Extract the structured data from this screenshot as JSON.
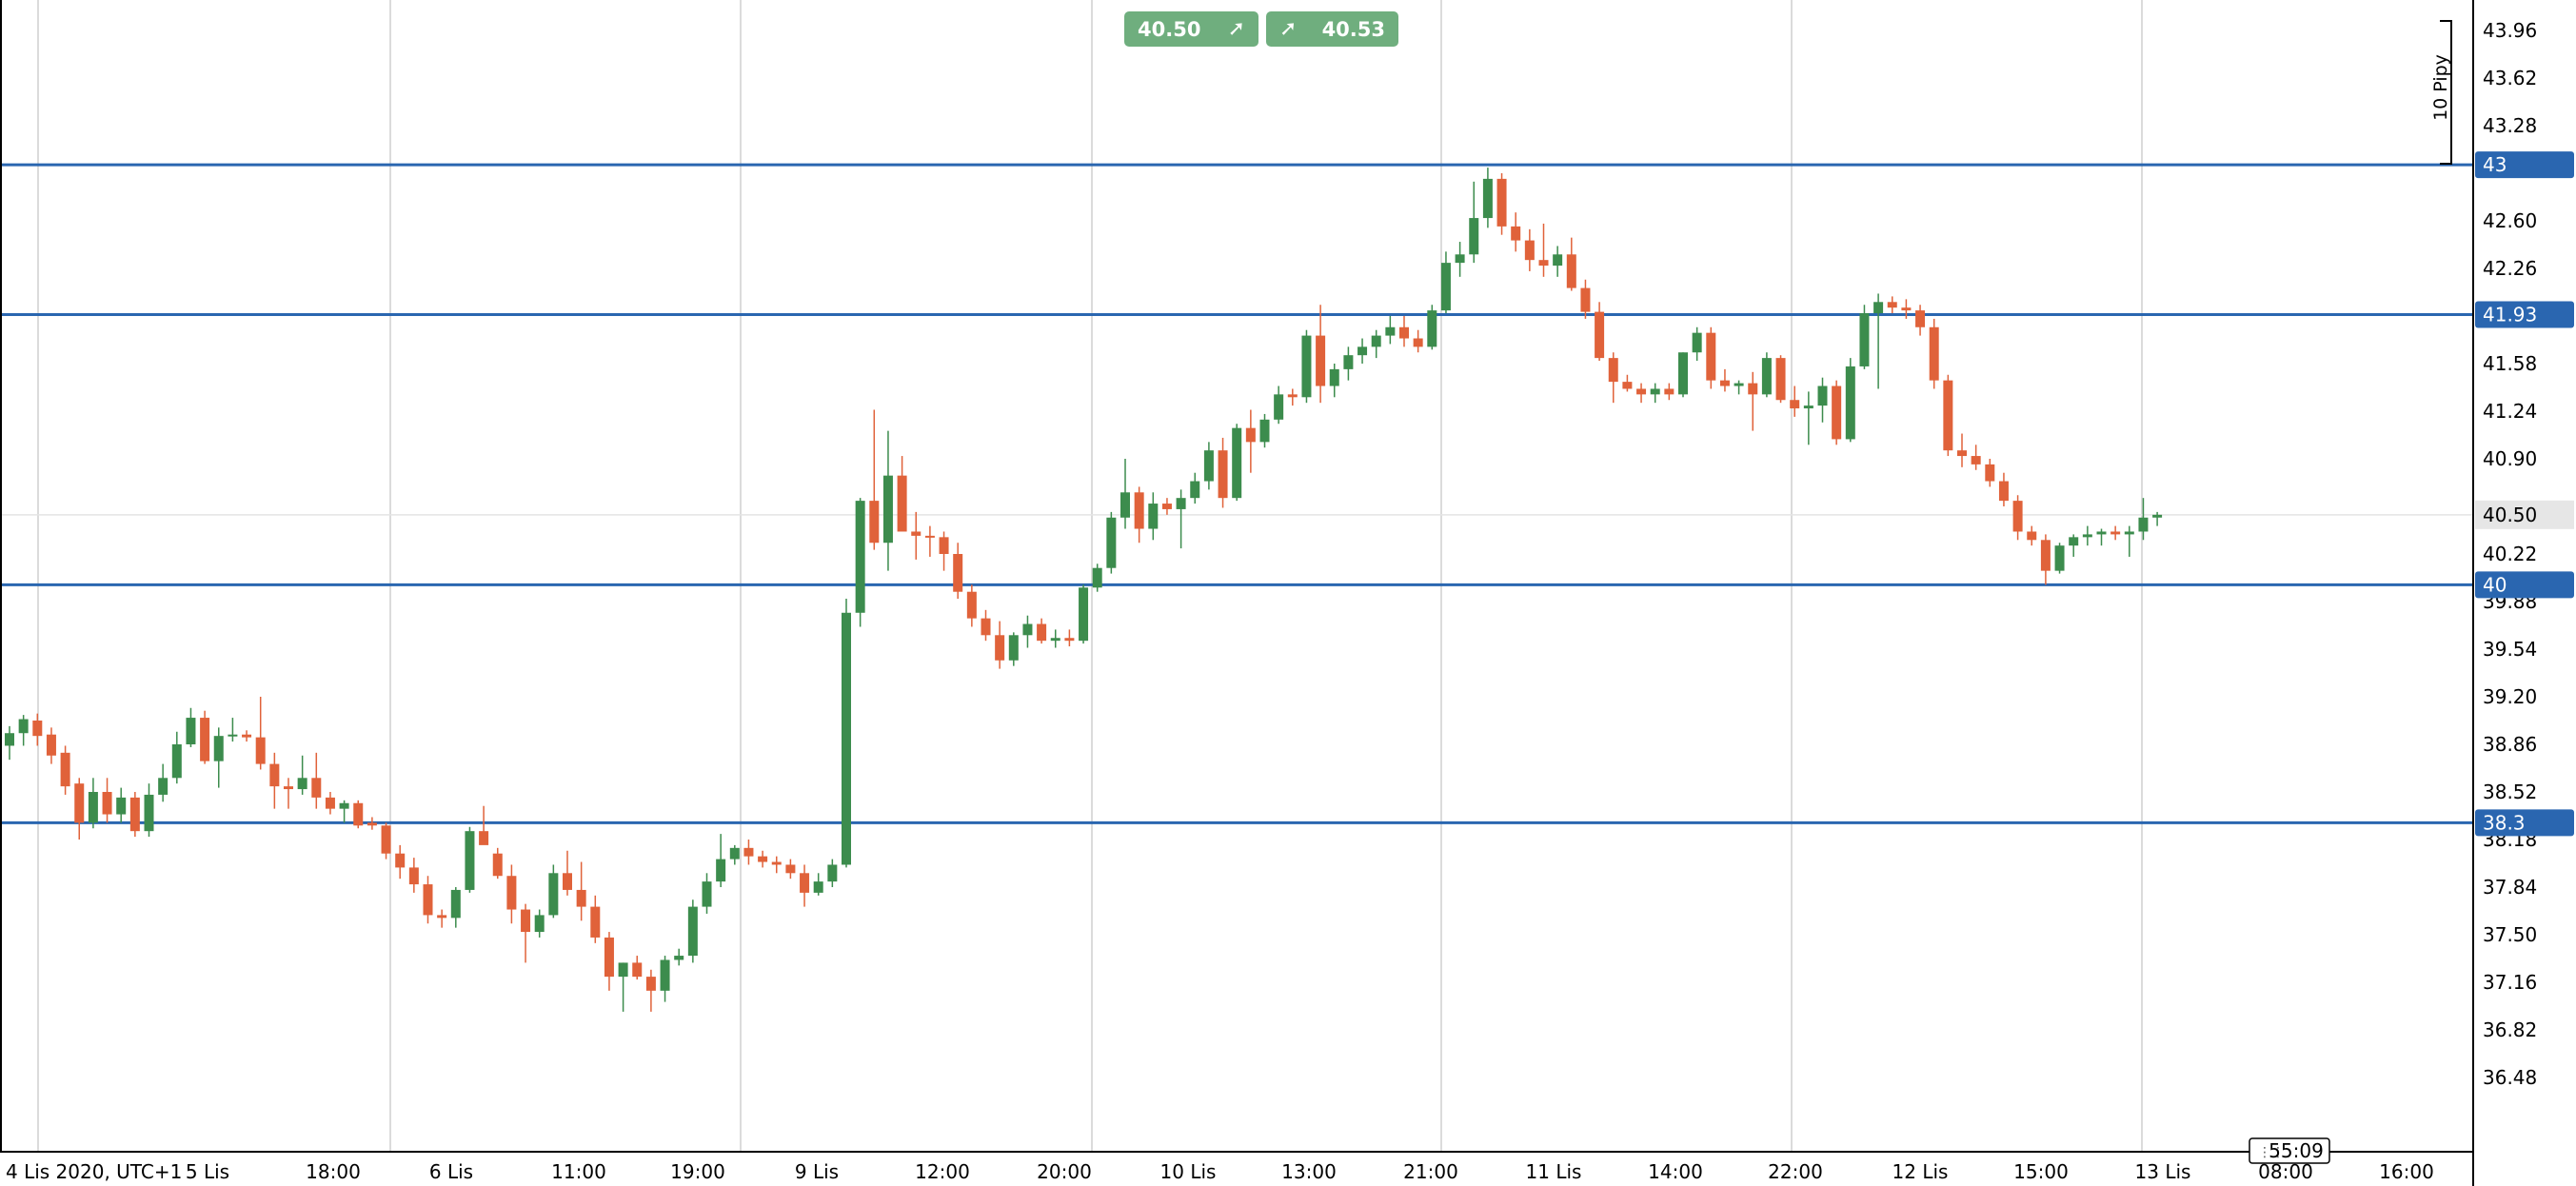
{
  "trade_panel": {
    "sell_price": "40.50",
    "buy_price": "40.53",
    "sell_icon": "arrow-up-right-icon",
    "buy_icon": "arrow-up-right-icon"
  },
  "colors": {
    "bull": "#3c8c4d",
    "bear": "#e0623a",
    "level_line": "#2a66b0",
    "level_label_bg": "#2a66b0",
    "current_price_label_bg": "#e6e6e6",
    "grid": "#cfcfcf"
  },
  "chart_data": {
    "type": "candlestick",
    "timezone_label": "4 Lis 2020, UTC+1",
    "x_tick_labels": [
      "4 Lis 2020, UTC+1",
      "5 Lis",
      "18:00",
      "6 Lis",
      "11:00",
      "19:00",
      "9 Lis",
      "12:00",
      "20:00",
      "10 Lis",
      "13:00",
      "21:00",
      "11 Lis",
      "14:00",
      "22:00",
      "12 Lis",
      "15:00",
      "13 Lis",
      "08:00",
      "16:00"
    ],
    "y_tick_labels": [
      "43.96",
      "43.62",
      "43.28",
      "42.60",
      "42.26",
      "41.58",
      "41.24",
      "40.90",
      "40.50",
      "40.22",
      "39.88",
      "39.54",
      "39.20",
      "38.86",
      "38.52",
      "38.18",
      "37.84",
      "37.50",
      "37.16",
      "36.82",
      "36.48"
    ],
    "ylim": [
      36.1,
      44.1
    ],
    "horizontal_levels": [
      {
        "label": "43",
        "value": 43.0
      },
      {
        "label": "41.93",
        "value": 41.93
      },
      {
        "label": "40",
        "value": 40.0
      },
      {
        "label": "38.3",
        "value": 38.3
      }
    ],
    "current_price": {
      "label": "40.50",
      "value": 40.5
    },
    "pip_scale_label": "10 Pipy",
    "countdown": "55:09",
    "candles": [
      {
        "o": 38.85,
        "h": 38.99,
        "l": 38.75,
        "c": 38.94
      },
      {
        "o": 38.94,
        "h": 39.07,
        "l": 38.85,
        "c": 39.04
      },
      {
        "o": 39.03,
        "h": 39.08,
        "l": 38.85,
        "c": 38.92
      },
      {
        "o": 38.93,
        "h": 38.98,
        "l": 38.72,
        "c": 38.78
      },
      {
        "o": 38.8,
        "h": 38.85,
        "l": 38.5,
        "c": 38.56
      },
      {
        "o": 38.58,
        "h": 38.62,
        "l": 38.18,
        "c": 38.3
      },
      {
        "o": 38.3,
        "h": 38.62,
        "l": 38.26,
        "c": 38.52
      },
      {
        "o": 38.52,
        "h": 38.62,
        "l": 38.3,
        "c": 38.36
      },
      {
        "o": 38.36,
        "h": 38.55,
        "l": 38.3,
        "c": 38.48
      },
      {
        "o": 38.48,
        "h": 38.52,
        "l": 38.2,
        "c": 38.24
      },
      {
        "o": 38.24,
        "h": 38.58,
        "l": 38.2,
        "c": 38.5
      },
      {
        "o": 38.5,
        "h": 38.72,
        "l": 38.45,
        "c": 38.62
      },
      {
        "o": 38.62,
        "h": 38.95,
        "l": 38.58,
        "c": 38.86
      },
      {
        "o": 38.86,
        "h": 39.12,
        "l": 38.84,
        "c": 39.05
      },
      {
        "o": 39.05,
        "h": 39.1,
        "l": 38.72,
        "c": 38.74
      },
      {
        "o": 38.74,
        "h": 38.98,
        "l": 38.55,
        "c": 38.92
      },
      {
        "o": 38.92,
        "h": 39.05,
        "l": 38.88,
        "c": 38.93
      },
      {
        "o": 38.93,
        "h": 38.96,
        "l": 38.88,
        "c": 38.91
      },
      {
        "o": 38.91,
        "h": 39.2,
        "l": 38.68,
        "c": 38.72
      },
      {
        "o": 38.72,
        "h": 38.8,
        "l": 38.4,
        "c": 38.56
      },
      {
        "o": 38.56,
        "h": 38.62,
        "l": 38.4,
        "c": 38.54
      },
      {
        "o": 38.54,
        "h": 38.78,
        "l": 38.5,
        "c": 38.62
      },
      {
        "o": 38.62,
        "h": 38.8,
        "l": 38.4,
        "c": 38.48
      },
      {
        "o": 38.48,
        "h": 38.52,
        "l": 38.36,
        "c": 38.4
      },
      {
        "o": 38.4,
        "h": 38.46,
        "l": 38.3,
        "c": 38.44
      },
      {
        "o": 38.44,
        "h": 38.46,
        "l": 38.26,
        "c": 38.28
      },
      {
        "o": 38.3,
        "h": 38.34,
        "l": 38.25,
        "c": 38.28
      },
      {
        "o": 38.28,
        "h": 38.3,
        "l": 38.04,
        "c": 38.08
      },
      {
        "o": 38.08,
        "h": 38.14,
        "l": 37.9,
        "c": 37.98
      },
      {
        "o": 37.98,
        "h": 38.05,
        "l": 37.8,
        "c": 37.86
      },
      {
        "o": 37.86,
        "h": 37.92,
        "l": 37.58,
        "c": 37.64
      },
      {
        "o": 37.64,
        "h": 37.68,
        "l": 37.55,
        "c": 37.62
      },
      {
        "o": 37.62,
        "h": 37.84,
        "l": 37.55,
        "c": 37.82
      },
      {
        "o": 37.82,
        "h": 38.27,
        "l": 37.8,
        "c": 38.24
      },
      {
        "o": 38.24,
        "h": 38.42,
        "l": 38.15,
        "c": 38.14
      },
      {
        "o": 38.08,
        "h": 38.12,
        "l": 37.9,
        "c": 37.92
      },
      {
        "o": 37.92,
        "h": 38.0,
        "l": 37.58,
        "c": 37.68
      },
      {
        "o": 37.68,
        "h": 37.72,
        "l": 37.3,
        "c": 37.52
      },
      {
        "o": 37.52,
        "h": 37.68,
        "l": 37.48,
        "c": 37.64
      },
      {
        "o": 37.64,
        "h": 38.0,
        "l": 37.62,
        "c": 37.94
      },
      {
        "o": 37.94,
        "h": 38.1,
        "l": 37.78,
        "c": 37.82
      },
      {
        "o": 37.82,
        "h": 38.02,
        "l": 37.6,
        "c": 37.7
      },
      {
        "o": 37.7,
        "h": 37.78,
        "l": 37.44,
        "c": 37.48
      },
      {
        "o": 37.48,
        "h": 37.52,
        "l": 37.1,
        "c": 37.2
      },
      {
        "o": 37.2,
        "h": 37.3,
        "l": 36.95,
        "c": 37.3
      },
      {
        "o": 37.3,
        "h": 37.35,
        "l": 37.18,
        "c": 37.2
      },
      {
        "o": 37.2,
        "h": 37.25,
        "l": 36.95,
        "c": 37.1
      },
      {
        "o": 37.1,
        "h": 37.35,
        "l": 37.02,
        "c": 37.32
      },
      {
        "o": 37.32,
        "h": 37.4,
        "l": 37.28,
        "c": 37.35
      },
      {
        "o": 37.35,
        "h": 37.75,
        "l": 37.3,
        "c": 37.7
      },
      {
        "o": 37.7,
        "h": 37.94,
        "l": 37.65,
        "c": 37.88
      },
      {
        "o": 37.88,
        "h": 38.22,
        "l": 37.84,
        "c": 38.04
      },
      {
        "o": 38.04,
        "h": 38.14,
        "l": 38.0,
        "c": 38.12
      },
      {
        "o": 38.12,
        "h": 38.18,
        "l": 38.0,
        "c": 38.06
      },
      {
        "o": 38.06,
        "h": 38.1,
        "l": 37.98,
        "c": 38.02
      },
      {
        "o": 38.02,
        "h": 38.06,
        "l": 37.94,
        "c": 38.0
      },
      {
        "o": 38.0,
        "h": 38.04,
        "l": 37.9,
        "c": 37.94
      },
      {
        "o": 37.94,
        "h": 38.0,
        "l": 37.7,
        "c": 37.8
      },
      {
        "o": 37.8,
        "h": 37.94,
        "l": 37.78,
        "c": 37.88
      },
      {
        "o": 37.88,
        "h": 38.04,
        "l": 37.84,
        "c": 38.0
      },
      {
        "o": 38.0,
        "h": 39.9,
        "l": 37.98,
        "c": 39.8
      },
      {
        "o": 39.8,
        "h": 40.62,
        "l": 39.7,
        "c": 40.6
      },
      {
        "o": 40.6,
        "h": 41.25,
        "l": 40.25,
        "c": 40.3
      },
      {
        "o": 40.3,
        "h": 41.1,
        "l": 40.1,
        "c": 40.78
      },
      {
        "o": 40.78,
        "h": 40.92,
        "l": 40.4,
        "c": 40.38
      },
      {
        "o": 40.38,
        "h": 40.52,
        "l": 40.18,
        "c": 40.35
      },
      {
        "o": 40.35,
        "h": 40.42,
        "l": 40.2,
        "c": 40.34
      },
      {
        "o": 40.34,
        "h": 40.38,
        "l": 40.1,
        "c": 40.22
      },
      {
        "o": 40.22,
        "h": 40.3,
        "l": 39.9,
        "c": 39.95
      },
      {
        "o": 39.95,
        "h": 40.0,
        "l": 39.7,
        "c": 39.76
      },
      {
        "o": 39.76,
        "h": 39.82,
        "l": 39.6,
        "c": 39.64
      },
      {
        "o": 39.64,
        "h": 39.74,
        "l": 39.4,
        "c": 39.46
      },
      {
        "o": 39.46,
        "h": 39.66,
        "l": 39.42,
        "c": 39.64
      },
      {
        "o": 39.64,
        "h": 39.78,
        "l": 39.55,
        "c": 39.72
      },
      {
        "o": 39.72,
        "h": 39.76,
        "l": 39.58,
        "c": 39.6
      },
      {
        "o": 39.6,
        "h": 39.68,
        "l": 39.55,
        "c": 39.62
      },
      {
        "o": 39.62,
        "h": 39.68,
        "l": 39.56,
        "c": 39.6
      },
      {
        "o": 39.6,
        "h": 40.0,
        "l": 39.58,
        "c": 39.98
      },
      {
        "o": 39.98,
        "h": 40.15,
        "l": 39.95,
        "c": 40.12
      },
      {
        "o": 40.12,
        "h": 40.52,
        "l": 40.08,
        "c": 40.48
      },
      {
        "o": 40.48,
        "h": 40.9,
        "l": 40.4,
        "c": 40.66
      },
      {
        "o": 40.66,
        "h": 40.7,
        "l": 40.3,
        "c": 40.4
      },
      {
        "o": 40.4,
        "h": 40.66,
        "l": 40.32,
        "c": 40.58
      },
      {
        "o": 40.58,
        "h": 40.62,
        "l": 40.5,
        "c": 40.54
      },
      {
        "o": 40.54,
        "h": 40.68,
        "l": 40.26,
        "c": 40.62
      },
      {
        "o": 40.62,
        "h": 40.8,
        "l": 40.58,
        "c": 40.74
      },
      {
        "o": 40.74,
        "h": 41.02,
        "l": 40.68,
        "c": 40.96
      },
      {
        "o": 40.96,
        "h": 41.05,
        "l": 40.55,
        "c": 40.62
      },
      {
        "o": 40.62,
        "h": 41.15,
        "l": 40.6,
        "c": 41.12
      },
      {
        "o": 41.12,
        "h": 41.25,
        "l": 40.8,
        "c": 41.02
      },
      {
        "o": 41.02,
        "h": 41.22,
        "l": 40.98,
        "c": 41.18
      },
      {
        "o": 41.18,
        "h": 41.42,
        "l": 41.15,
        "c": 41.36
      },
      {
        "o": 41.36,
        "h": 41.4,
        "l": 41.28,
        "c": 41.34
      },
      {
        "o": 41.34,
        "h": 41.82,
        "l": 41.3,
        "c": 41.78
      },
      {
        "o": 41.78,
        "h": 42.0,
        "l": 41.3,
        "c": 41.42
      },
      {
        "o": 41.42,
        "h": 41.58,
        "l": 41.34,
        "c": 41.54
      },
      {
        "o": 41.54,
        "h": 41.7,
        "l": 41.46,
        "c": 41.64
      },
      {
        "o": 41.64,
        "h": 41.76,
        "l": 41.58,
        "c": 41.7
      },
      {
        "o": 41.7,
        "h": 41.82,
        "l": 41.62,
        "c": 41.78
      },
      {
        "o": 41.78,
        "h": 41.92,
        "l": 41.72,
        "c": 41.84
      },
      {
        "o": 41.84,
        "h": 41.92,
        "l": 41.7,
        "c": 41.76
      },
      {
        "o": 41.76,
        "h": 41.82,
        "l": 41.66,
        "c": 41.7
      },
      {
        "o": 41.7,
        "h": 42.0,
        "l": 41.68,
        "c": 41.96
      },
      {
        "o": 41.96,
        "h": 42.38,
        "l": 41.94,
        "c": 42.3
      },
      {
        "o": 42.3,
        "h": 42.45,
        "l": 42.2,
        "c": 42.36
      },
      {
        "o": 42.36,
        "h": 42.88,
        "l": 42.3,
        "c": 42.62
      },
      {
        "o": 42.62,
        "h": 42.98,
        "l": 42.55,
        "c": 42.9
      },
      {
        "o": 42.9,
        "h": 42.94,
        "l": 42.5,
        "c": 42.56
      },
      {
        "o": 42.56,
        "h": 42.66,
        "l": 42.38,
        "c": 42.46
      },
      {
        "o": 42.46,
        "h": 42.54,
        "l": 42.24,
        "c": 42.32
      },
      {
        "o": 42.32,
        "h": 42.58,
        "l": 42.2,
        "c": 42.28
      },
      {
        "o": 42.28,
        "h": 42.42,
        "l": 42.2,
        "c": 42.36
      },
      {
        "o": 42.36,
        "h": 42.48,
        "l": 42.1,
        "c": 42.12
      },
      {
        "o": 42.12,
        "h": 42.18,
        "l": 41.9,
        "c": 41.95
      },
      {
        "o": 41.95,
        "h": 42.02,
        "l": 41.6,
        "c": 41.62
      },
      {
        "o": 41.62,
        "h": 41.66,
        "l": 41.3,
        "c": 41.45
      },
      {
        "o": 41.45,
        "h": 41.5,
        "l": 41.38,
        "c": 41.4
      },
      {
        "o": 41.4,
        "h": 41.44,
        "l": 41.3,
        "c": 41.36
      },
      {
        "o": 41.36,
        "h": 41.44,
        "l": 41.3,
        "c": 41.4
      },
      {
        "o": 41.4,
        "h": 41.44,
        "l": 41.32,
        "c": 41.36
      },
      {
        "o": 41.36,
        "h": 41.66,
        "l": 41.34,
        "c": 41.66
      },
      {
        "o": 41.66,
        "h": 41.84,
        "l": 41.6,
        "c": 41.8
      },
      {
        "o": 41.8,
        "h": 41.84,
        "l": 41.4,
        "c": 41.46
      },
      {
        "o": 41.46,
        "h": 41.54,
        "l": 41.38,
        "c": 41.42
      },
      {
        "o": 41.42,
        "h": 41.46,
        "l": 41.36,
        "c": 41.44
      },
      {
        "o": 41.44,
        "h": 41.52,
        "l": 41.1,
        "c": 41.36
      },
      {
        "o": 41.36,
        "h": 41.66,
        "l": 41.34,
        "c": 41.62
      },
      {
        "o": 41.62,
        "h": 41.64,
        "l": 41.3,
        "c": 41.32
      },
      {
        "o": 41.32,
        "h": 41.42,
        "l": 41.2,
        "c": 41.26
      },
      {
        "o": 41.26,
        "h": 41.38,
        "l": 41.0,
        "c": 41.28
      },
      {
        "o": 41.28,
        "h": 41.48,
        "l": 41.16,
        "c": 41.42
      },
      {
        "o": 41.42,
        "h": 41.46,
        "l": 41.0,
        "c": 41.04
      },
      {
        "o": 41.04,
        "h": 41.62,
        "l": 41.02,
        "c": 41.56
      },
      {
        "o": 41.56,
        "h": 42.0,
        "l": 41.54,
        "c": 41.94
      },
      {
        "o": 41.94,
        "h": 42.08,
        "l": 41.4,
        "c": 42.02
      },
      {
        "o": 42.02,
        "h": 42.06,
        "l": 41.94,
        "c": 41.98
      },
      {
        "o": 41.98,
        "h": 42.04,
        "l": 41.9,
        "c": 41.96
      },
      {
        "o": 41.96,
        "h": 42.0,
        "l": 41.78,
        "c": 41.84
      },
      {
        "o": 41.84,
        "h": 41.9,
        "l": 41.4,
        "c": 41.46
      },
      {
        "o": 41.46,
        "h": 41.5,
        "l": 40.92,
        "c": 40.96
      },
      {
        "o": 40.96,
        "h": 41.08,
        "l": 40.84,
        "c": 40.92
      },
      {
        "o": 40.92,
        "h": 41.0,
        "l": 40.82,
        "c": 40.86
      },
      {
        "o": 40.86,
        "h": 40.9,
        "l": 40.7,
        "c": 40.74
      },
      {
        "o": 40.74,
        "h": 40.8,
        "l": 40.56,
        "c": 40.6
      },
      {
        "o": 40.6,
        "h": 40.64,
        "l": 40.32,
        "c": 40.38
      },
      {
        "o": 40.38,
        "h": 40.42,
        "l": 40.28,
        "c": 40.32
      },
      {
        "o": 40.32,
        "h": 40.36,
        "l": 40.0,
        "c": 40.1
      },
      {
        "o": 40.1,
        "h": 40.3,
        "l": 40.08,
        "c": 40.28
      },
      {
        "o": 40.28,
        "h": 40.36,
        "l": 40.2,
        "c": 40.34
      },
      {
        "o": 40.34,
        "h": 40.42,
        "l": 40.28,
        "c": 40.36
      },
      {
        "o": 40.36,
        "h": 40.4,
        "l": 40.28,
        "c": 40.38
      },
      {
        "o": 40.38,
        "h": 40.42,
        "l": 40.32,
        "c": 40.36
      },
      {
        "o": 40.36,
        "h": 40.42,
        "l": 40.2,
        "c": 40.38
      },
      {
        "o": 40.38,
        "h": 40.62,
        "l": 40.32,
        "c": 40.48
      },
      {
        "o": 40.48,
        "h": 40.52,
        "l": 40.42,
        "c": 40.5
      }
    ]
  }
}
